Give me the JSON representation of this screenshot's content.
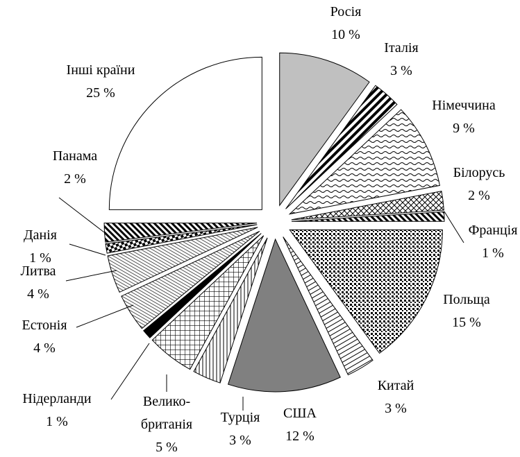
{
  "chart_data": {
    "type": "pie",
    "categories": [
      "Росія",
      "Італія",
      "Німеччина",
      "Білорусь",
      "Франція",
      "Польща",
      "Китай",
      "США",
      "Турція",
      "Велико-\nбританія",
      "Нідерланди",
      "Естонія",
      "Литва",
      "Данія",
      "Панама",
      "Інші країни"
    ],
    "values": [
      10,
      3,
      9,
      2,
      1,
      15,
      3,
      12,
      3,
      5,
      1,
      4,
      4,
      1,
      2,
      25
    ],
    "value_labels": [
      "10 %",
      "3 %",
      "9 %",
      "2 %",
      "1 %",
      "15 %",
      "3 %",
      "12 %",
      "3 %",
      "5 %",
      "1 %",
      "4 %",
      "4 %",
      "1 %",
      "2 %",
      "25 %"
    ]
  }
}
